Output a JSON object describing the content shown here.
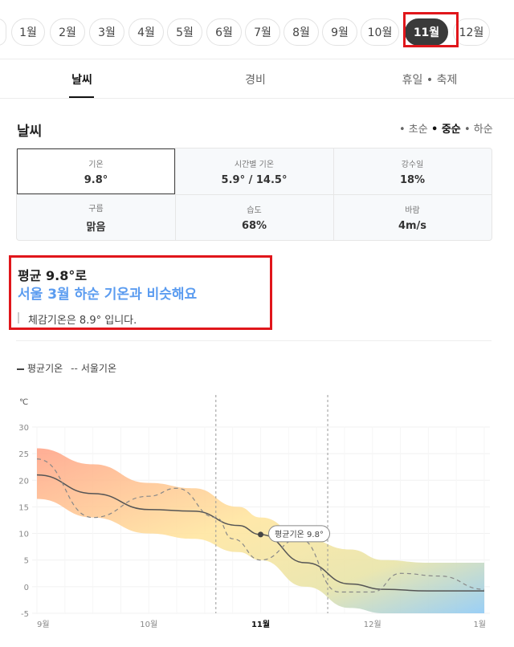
{
  "months": {
    "items": [
      "1월",
      "2월",
      "3월",
      "4월",
      "5월",
      "6월",
      "7월",
      "8월",
      "9월",
      "10월",
      "11월",
      "12월"
    ],
    "selected_index": 10
  },
  "tabs": [
    "날씨",
    "경비",
    "휴일 • 축제"
  ],
  "weather": {
    "title": "날씨",
    "periods": [
      "• 초순",
      "• 중순",
      "• 하순"
    ],
    "selected_period": 1,
    "stats": [
      {
        "label": "기온",
        "value": "9.8°"
      },
      {
        "label": "시간별 기온",
        "value": "5.9° / 14.5°"
      },
      {
        "label": "강수일",
        "value": "18%"
      },
      {
        "label": "구름",
        "value": "맑음"
      },
      {
        "label": "습도",
        "value": "68%"
      },
      {
        "label": "바람",
        "value": "4m/s"
      }
    ]
  },
  "summary": {
    "line1": "평균 9.8°로",
    "line2": "서울 3월 하순 기온과 비슷해요",
    "line3": "체감기온은 8.9° 입니다."
  },
  "legend": {
    "avg": "평균기온",
    "seoul": "서울기온"
  },
  "chart_data": {
    "type": "line",
    "ylabel": "℃",
    "ylim": [
      -5,
      30
    ],
    "yticks": [
      -5,
      0,
      5,
      10,
      15,
      20,
      25,
      30
    ],
    "x_tick_labels": [
      "9월",
      "10월",
      "11월",
      "12월",
      "1월"
    ],
    "x_tick_positions": [
      0,
      1,
      2,
      3,
      4
    ],
    "highlight_label": "11월",
    "marker_label": "평균기온 9.8°",
    "series": [
      {
        "name": "평균기온",
        "x": [
          0,
          0.5,
          1,
          1.4,
          1.8,
          2.0,
          2.4,
          2.8,
          3.1,
          3.5,
          4.0
        ],
        "y": [
          21,
          17.5,
          14.5,
          14.2,
          11.5,
          9.8,
          4.5,
          0.5,
          -0.5,
          -0.8,
          -0.8
        ]
      },
      {
        "name": "서울기온",
        "x": [
          0,
          0.5,
          1.0,
          1.25,
          1.6,
          1.75,
          2.0,
          2.35,
          2.7,
          3.0,
          3.25,
          3.6,
          4.0
        ],
        "y": [
          24,
          13,
          17,
          18.5,
          13,
          9,
          5,
          9,
          -1,
          -1,
          2.5,
          2,
          -0.5
        ]
      }
    ],
    "band": {
      "x": [
        0,
        0.5,
        1,
        1.4,
        1.8,
        2.0,
        2.4,
        2.8,
        3.1,
        3.5,
        4.0
      ],
      "upper": [
        26,
        23,
        19.5,
        18.5,
        15,
        13,
        9,
        7,
        5,
        4.5,
        4.5
      ],
      "lower": [
        16.5,
        13,
        10,
        9,
        6.5,
        5,
        0,
        -4,
        -5,
        -5,
        -5
      ]
    },
    "marker_x": 2.0,
    "marker_y": 9.8,
    "vertical_lines_x": [
      1.6,
      2.6
    ]
  }
}
